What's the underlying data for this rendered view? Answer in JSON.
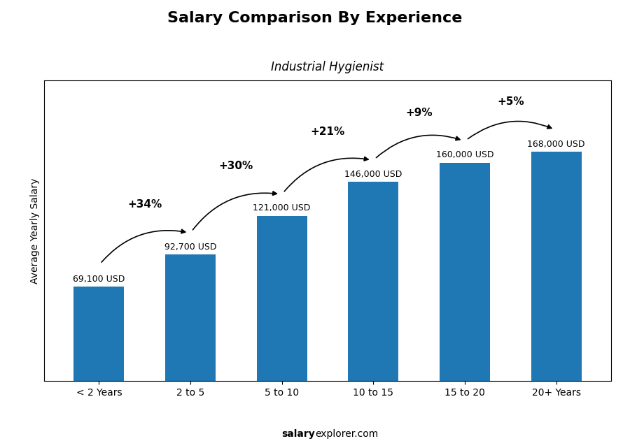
{
  "chart_data": {
    "type": "bar",
    "title": "Salary Comparison By Experience",
    "subtitle": "Industrial Hygienist",
    "categories": [
      "< 2 Years",
      "2 to 5",
      "5 to 10",
      "10 to 15",
      "15 to 20",
      "20+ Years"
    ],
    "values": [
      69100,
      92700,
      121000,
      146000,
      160000,
      168000
    ],
    "value_labels": [
      "69,100 USD",
      "92,700 USD",
      "121,000 USD",
      "146,000 USD",
      "160,000 USD",
      "168,000 USD"
    ],
    "data_labels": true,
    "color": "#1f77b4",
    "ylim": [
      0,
      220000
    ],
    "yticks": [],
    "tick_labels": "x",
    "ylabel": "Average Yearly Salary",
    "annotations": [
      "+34%",
      "+30%",
      "+21%",
      "+9%",
      "+5%"
    ],
    "footer": [
      "salary",
      "explorer.com"
    ]
  }
}
